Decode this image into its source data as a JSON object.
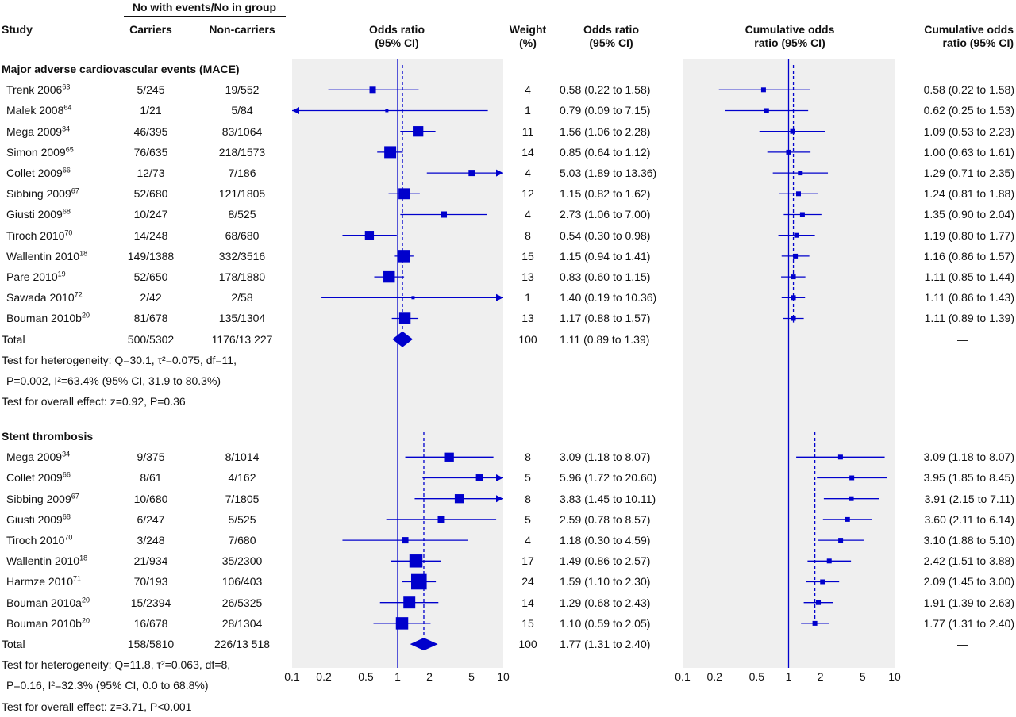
{
  "headers": {
    "events_group": "No with events/No in group",
    "study": "Study",
    "carriers": "Carriers",
    "noncarriers": "Non-carriers",
    "or_plot_line1": "Odds ratio",
    "or_plot_line2": "(95% CI)",
    "weight_line1": "Weight",
    "weight_line2": "(%)",
    "or_text_line1": "Odds ratio",
    "or_text_line2": "(95% CI)",
    "cum_plot_line1": "Cumulative odds",
    "cum_plot_line2": "ratio (95% CI)",
    "cum_text_line1": "Cumulative odds",
    "cum_text_line2": "ratio (95% CI)"
  },
  "axis": {
    "ticks": [
      0.1,
      0.2,
      0.5,
      1,
      2,
      5,
      10
    ],
    "tick_labels": [
      "0.1",
      "0.2",
      "0.5",
      "1",
      "2",
      "5",
      "10"
    ]
  },
  "colors": {
    "marker": "#0000cc",
    "panel": "#efefef"
  },
  "chart_data": [
    {
      "type": "forest",
      "section": "Major adverse cardiovascular events (MACE)",
      "scale": "log",
      "xlim": [
        0.1,
        10
      ],
      "studies": [
        {
          "name": "Trenk 2006",
          "ref": "63",
          "carriers": "5/245",
          "noncarriers": "19/552",
          "or": 0.58,
          "lo": 0.22,
          "hi": 1.58,
          "weight": "4",
          "or_text": "0.58 (0.22 to 1.58)",
          "cum": 0.58,
          "cum_lo": 0.22,
          "cum_hi": 1.58,
          "cum_text": "0.58 (0.22 to 1.58)"
        },
        {
          "name": "Malek 2008",
          "ref": "64",
          "carriers": "1/21",
          "noncarriers": "5/84",
          "or": 0.79,
          "lo": 0.09,
          "hi": 7.15,
          "weight": "1",
          "or_text": "0.79 (0.09 to 7.15)",
          "cum": 0.62,
          "cum_lo": 0.25,
          "cum_hi": 1.53,
          "cum_text": "0.62 (0.25 to 1.53)"
        },
        {
          "name": "Mega 2009",
          "ref": "34",
          "carriers": "46/395",
          "noncarriers": "83/1064",
          "or": 1.56,
          "lo": 1.06,
          "hi": 2.28,
          "weight": "11",
          "or_text": "1.56 (1.06 to 2.28)",
          "cum": 1.09,
          "cum_lo": 0.53,
          "cum_hi": 2.23,
          "cum_text": "1.09 (0.53 to 2.23)"
        },
        {
          "name": "Simon 2009",
          "ref": "65",
          "carriers": "76/635",
          "noncarriers": "218/1573",
          "or": 0.85,
          "lo": 0.64,
          "hi": 1.12,
          "weight": "14",
          "or_text": "0.85 (0.64 to 1.12)",
          "cum": 1.0,
          "cum_lo": 0.63,
          "cum_hi": 1.61,
          "cum_text": "1.00 (0.63 to 1.61)"
        },
        {
          "name": "Collet 2009",
          "ref": "66",
          "carriers": "12/73",
          "noncarriers": "7/186",
          "or": 5.03,
          "lo": 1.89,
          "hi": 13.36,
          "weight": "4",
          "or_text": "5.03 (1.89 to 13.36)",
          "cum": 1.29,
          "cum_lo": 0.71,
          "cum_hi": 2.35,
          "cum_text": "1.29 (0.71 to 2.35)"
        },
        {
          "name": "Sibbing 2009",
          "ref": "67",
          "carriers": "52/680",
          "noncarriers": "121/1805",
          "or": 1.15,
          "lo": 0.82,
          "hi": 1.62,
          "weight": "12",
          "or_text": "1.15 (0.82 to 1.62)",
          "cum": 1.24,
          "cum_lo": 0.81,
          "cum_hi": 1.88,
          "cum_text": "1.24 (0.81 to 1.88)"
        },
        {
          "name": "Giusti 2009",
          "ref": "68",
          "carriers": "10/247",
          "noncarriers": "8/525",
          "or": 2.73,
          "lo": 1.06,
          "hi": 7.0,
          "weight": "4",
          "or_text": "2.73 (1.06 to 7.00)",
          "cum": 1.35,
          "cum_lo": 0.9,
          "cum_hi": 2.04,
          "cum_text": "1.35 (0.90 to 2.04)"
        },
        {
          "name": "Tiroch 2010",
          "ref": "70",
          "carriers": "14/248",
          "noncarriers": "68/680",
          "or": 0.54,
          "lo": 0.3,
          "hi": 0.98,
          "weight": "8",
          "or_text": "0.54 (0.30 to 0.98)",
          "cum": 1.19,
          "cum_lo": 0.8,
          "cum_hi": 1.77,
          "cum_text": "1.19 (0.80 to 1.77)"
        },
        {
          "name": "Wallentin 2010",
          "ref": "18",
          "carriers": "149/1388",
          "noncarriers": "332/3516",
          "or": 1.15,
          "lo": 0.94,
          "hi": 1.41,
          "weight": "15",
          "or_text": "1.15 (0.94 to 1.41)",
          "cum": 1.16,
          "cum_lo": 0.86,
          "cum_hi": 1.57,
          "cum_text": "1.16 (0.86 to 1.57)"
        },
        {
          "name": "Pare 2010",
          "ref": "19",
          "carriers": "52/650",
          "noncarriers": "178/1880",
          "or": 0.83,
          "lo": 0.6,
          "hi": 1.15,
          "weight": "13",
          "or_text": "0.83 (0.60 to 1.15)",
          "cum": 1.11,
          "cum_lo": 0.85,
          "cum_hi": 1.44,
          "cum_text": "1.11 (0.85 to 1.44)"
        },
        {
          "name": "Sawada 2010",
          "ref": "72",
          "carriers": "2/42",
          "noncarriers": "2/58",
          "or": 1.4,
          "lo": 0.19,
          "hi": 10.36,
          "weight": "1",
          "or_text": "1.40 (0.19 to 10.36)",
          "cum": 1.11,
          "cum_lo": 0.86,
          "cum_hi": 1.43,
          "cum_text": "1.11 (0.86 to 1.43)"
        },
        {
          "name": "Bouman 2010b",
          "ref": "20",
          "carriers": "81/678",
          "noncarriers": "135/1304",
          "or": 1.17,
          "lo": 0.88,
          "hi": 1.57,
          "weight": "13",
          "or_text": "1.17 (0.88 to 1.57)",
          "cum": 1.11,
          "cum_lo": 0.89,
          "cum_hi": 1.39,
          "cum_text": "1.11 (0.89 to 1.39)"
        }
      ],
      "total": {
        "label": "Total",
        "carriers": "500/5302",
        "noncarriers": "1176/13 227",
        "or": 1.11,
        "lo": 0.89,
        "hi": 1.39,
        "weight": "100",
        "or_text": "1.11 (0.89 to 1.39)",
        "cum_text": "—"
      },
      "heterogeneity_line1": "Test for heterogeneity: Q=30.1, τ²=0.075, df=11,",
      "heterogeneity_line2": "P=0.002, I²=63.4% (95% CI, 31.9 to 80.3%)",
      "overall_effect": "Test for overall effect: z=0.92, P=0.36"
    },
    {
      "type": "forest",
      "section": "Stent thrombosis",
      "scale": "log",
      "xlim": [
        0.1,
        10
      ],
      "studies": [
        {
          "name": "Mega 2009",
          "ref": "34",
          "carriers": "9/375",
          "noncarriers": "8/1014",
          "or": 3.09,
          "lo": 1.18,
          "hi": 8.07,
          "weight": "8",
          "or_text": "3.09 (1.18 to 8.07)",
          "cum": 3.09,
          "cum_lo": 1.18,
          "cum_hi": 8.07,
          "cum_text": "3.09 (1.18 to 8.07)"
        },
        {
          "name": "Collet 2009",
          "ref": "66",
          "carriers": "8/61",
          "noncarriers": "4/162",
          "or": 5.96,
          "lo": 1.72,
          "hi": 20.6,
          "weight": "5",
          "or_text": "5.96 (1.72 to 20.60)",
          "cum": 3.95,
          "cum_lo": 1.85,
          "cum_hi": 8.45,
          "cum_text": "3.95 (1.85 to 8.45)"
        },
        {
          "name": "Sibbing 2009",
          "ref": "67",
          "carriers": "10/680",
          "noncarriers": "7/1805",
          "or": 3.83,
          "lo": 1.45,
          "hi": 10.11,
          "weight": "8",
          "or_text": "3.83 (1.45 to 10.11)",
          "cum": 3.91,
          "cum_lo": 2.15,
          "cum_hi": 7.11,
          "cum_text": "3.91 (2.15 to 7.11)"
        },
        {
          "name": "Giusti 2009",
          "ref": "68",
          "carriers": "6/247",
          "noncarriers": "5/525",
          "or": 2.59,
          "lo": 0.78,
          "hi": 8.57,
          "weight": "5",
          "or_text": "2.59 (0.78 to 8.57)",
          "cum": 3.6,
          "cum_lo": 2.11,
          "cum_hi": 6.14,
          "cum_text": "3.60 (2.11 to 6.14)"
        },
        {
          "name": "Tiroch 2010",
          "ref": "70",
          "carriers": "3/248",
          "noncarriers": "7/680",
          "or": 1.18,
          "lo": 0.3,
          "hi": 4.59,
          "weight": "4",
          "or_text": "1.18 (0.30 to 4.59)",
          "cum": 3.1,
          "cum_lo": 1.88,
          "cum_hi": 5.1,
          "cum_text": "3.10 (1.88 to 5.10)"
        },
        {
          "name": "Wallentin 2010",
          "ref": "18",
          "carriers": "21/934",
          "noncarriers": "35/2300",
          "or": 1.49,
          "lo": 0.86,
          "hi": 2.57,
          "weight": "17",
          "or_text": "1.49 (0.86 to 2.57)",
          "cum": 2.42,
          "cum_lo": 1.51,
          "cum_hi": 3.88,
          "cum_text": "2.42 (1.51 to 3.88)"
        },
        {
          "name": "Harmze 2010",
          "ref": "71",
          "carriers": "70/193",
          "noncarriers": "106/403",
          "or": 1.59,
          "lo": 1.1,
          "hi": 2.3,
          "weight": "24",
          "or_text": "1.59 (1.10 to 2.30)",
          "cum": 2.09,
          "cum_lo": 1.45,
          "cum_hi": 3.0,
          "cum_text": "2.09 (1.45 to 3.00)"
        },
        {
          "name": "Bouman 2010a",
          "ref": "20",
          "carriers": "15/2394",
          "noncarriers": "26/5325",
          "or": 1.29,
          "lo": 0.68,
          "hi": 2.43,
          "weight": "14",
          "or_text": "1.29 (0.68 to 2.43)",
          "cum": 1.91,
          "cum_lo": 1.39,
          "cum_hi": 2.63,
          "cum_text": "1.91 (1.39 to 2.63)"
        },
        {
          "name": "Bouman 2010b",
          "ref": "20",
          "carriers": "16/678",
          "noncarriers": "28/1304",
          "or": 1.1,
          "lo": 0.59,
          "hi": 2.05,
          "weight": "15",
          "or_text": "1.10 (0.59 to 2.05)",
          "cum": 1.77,
          "cum_lo": 1.31,
          "cum_hi": 2.4,
          "cum_text": "1.77 (1.31 to 2.40)"
        }
      ],
      "total": {
        "label": "Total",
        "carriers": "158/5810",
        "noncarriers": "226/13 518",
        "or": 1.77,
        "lo": 1.31,
        "hi": 2.4,
        "weight": "100",
        "or_text": "1.77 (1.31 to 2.40)",
        "cum_text": "—"
      },
      "heterogeneity_line1": "Test for heterogeneity: Q=11.8, τ²=0.063, df=8,",
      "heterogeneity_line2": "P=0.16, I²=32.3% (95% CI, 0.0 to 68.8%)",
      "overall_effect": "Test for overall effect: z=3.71, P<0.001"
    }
  ]
}
